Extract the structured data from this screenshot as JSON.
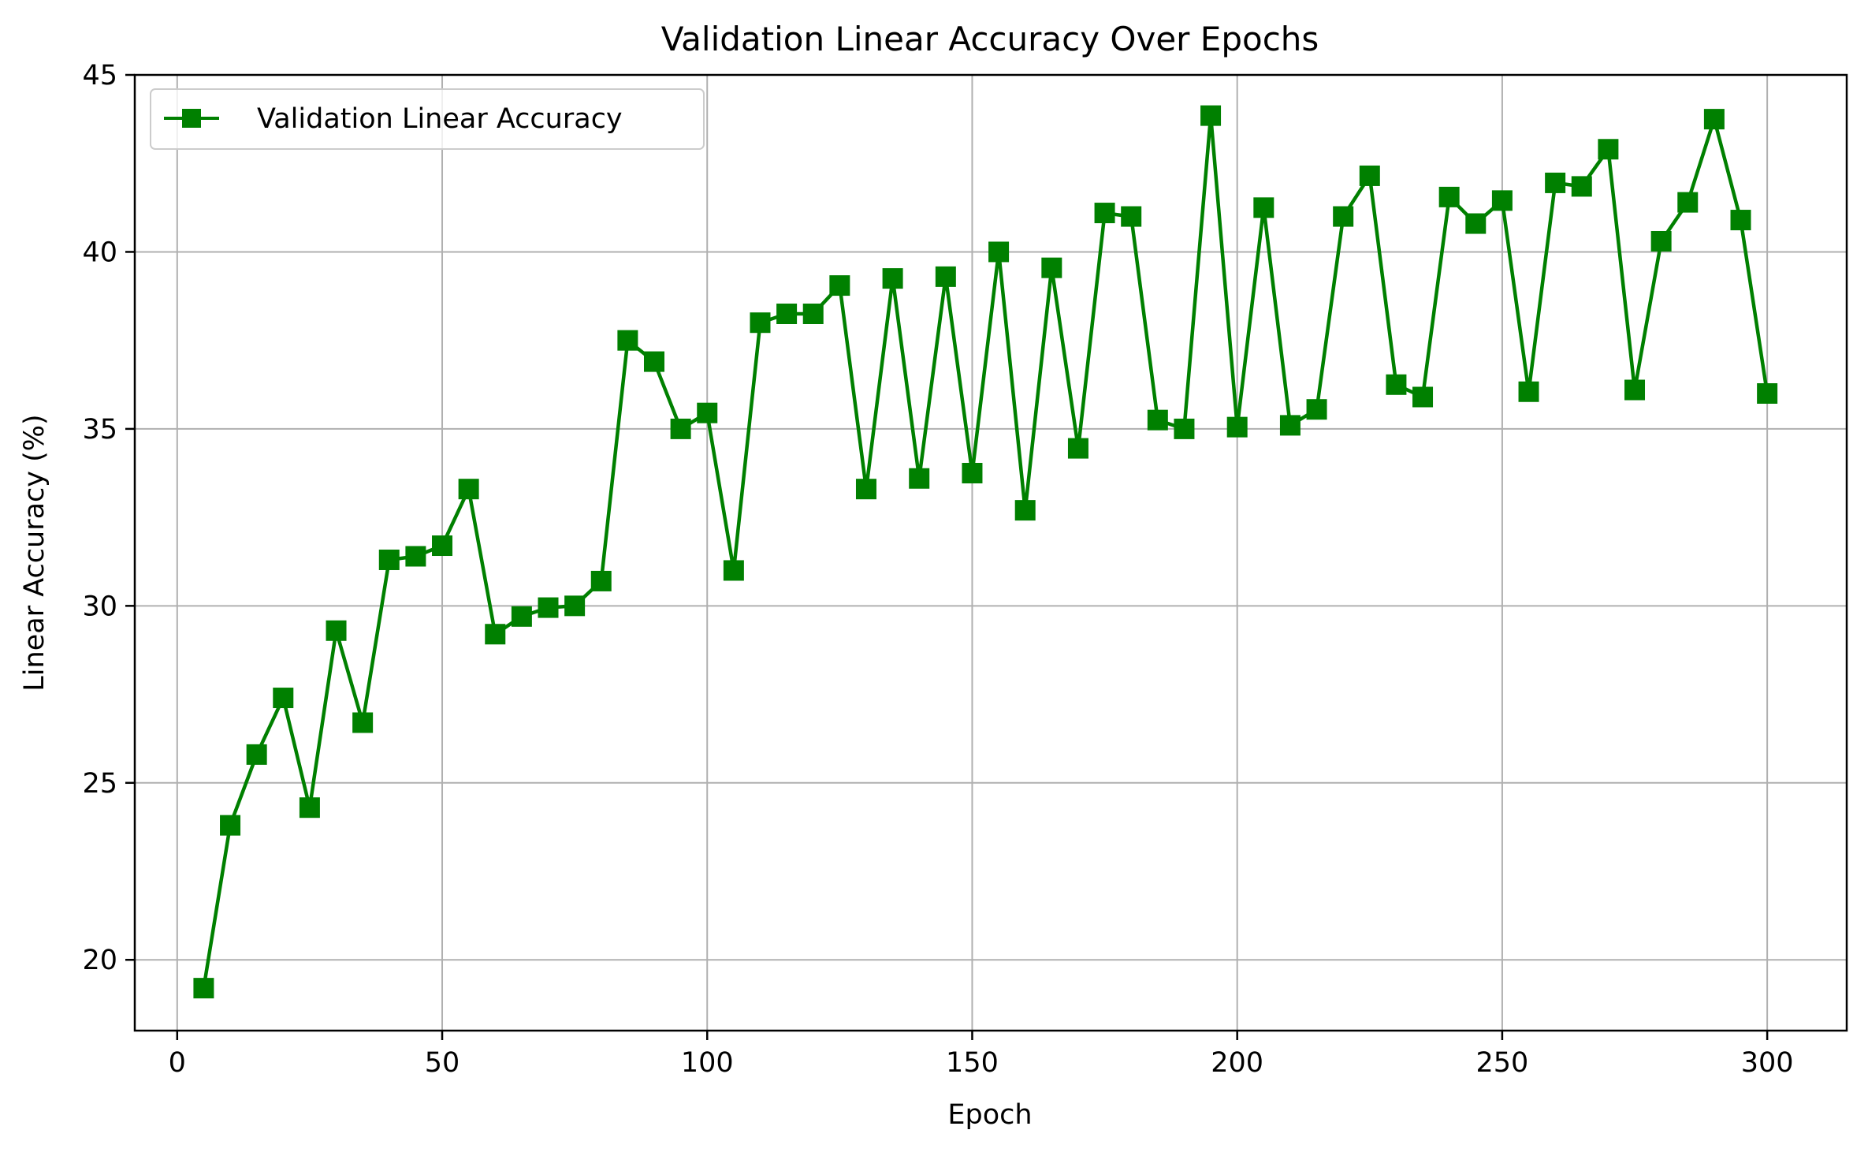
{
  "chart_data": {
    "type": "line",
    "title": "Validation Linear Accuracy Over Epochs",
    "xlabel": "Epoch",
    "ylabel": "Linear Accuracy (%)",
    "xlim": [
      -8,
      315
    ],
    "ylim": [
      18,
      45
    ],
    "xticks": [
      0,
      50,
      100,
      150,
      200,
      250,
      300
    ],
    "yticks": [
      20,
      25,
      30,
      35,
      40,
      45
    ],
    "grid": true,
    "legend_position": "upper-left",
    "series": [
      {
        "name": "Validation Linear Accuracy",
        "color": "#008000",
        "marker": "square",
        "x": [
          5,
          10,
          15,
          20,
          25,
          30,
          35,
          40,
          45,
          50,
          55,
          60,
          65,
          70,
          75,
          80,
          85,
          90,
          95,
          100,
          105,
          110,
          115,
          120,
          125,
          130,
          135,
          140,
          145,
          150,
          155,
          160,
          165,
          170,
          175,
          180,
          185,
          190,
          195,
          200,
          205,
          210,
          215,
          220,
          225,
          230,
          235,
          240,
          245,
          250,
          255,
          260,
          265,
          270,
          275,
          280,
          285,
          290,
          295,
          300
        ],
        "y": [
          19.2,
          23.8,
          25.8,
          27.4,
          24.3,
          29.3,
          26.7,
          31.3,
          31.4,
          31.7,
          33.3,
          29.2,
          29.7,
          29.95,
          30.0,
          30.7,
          37.5,
          36.9,
          35.0,
          35.45,
          31.0,
          38.0,
          38.25,
          38.25,
          39.05,
          33.3,
          39.25,
          33.6,
          39.3,
          33.75,
          40.0,
          32.7,
          39.55,
          34.45,
          41.1,
          41.0,
          35.25,
          35.0,
          43.85,
          35.05,
          41.25,
          35.1,
          35.55,
          41.0,
          42.15,
          36.25,
          35.9,
          41.55,
          40.8,
          41.45,
          36.05,
          41.95,
          41.85,
          42.9,
          36.1,
          40.3,
          41.4,
          43.75,
          40.9,
          36.0
        ]
      }
    ]
  }
}
